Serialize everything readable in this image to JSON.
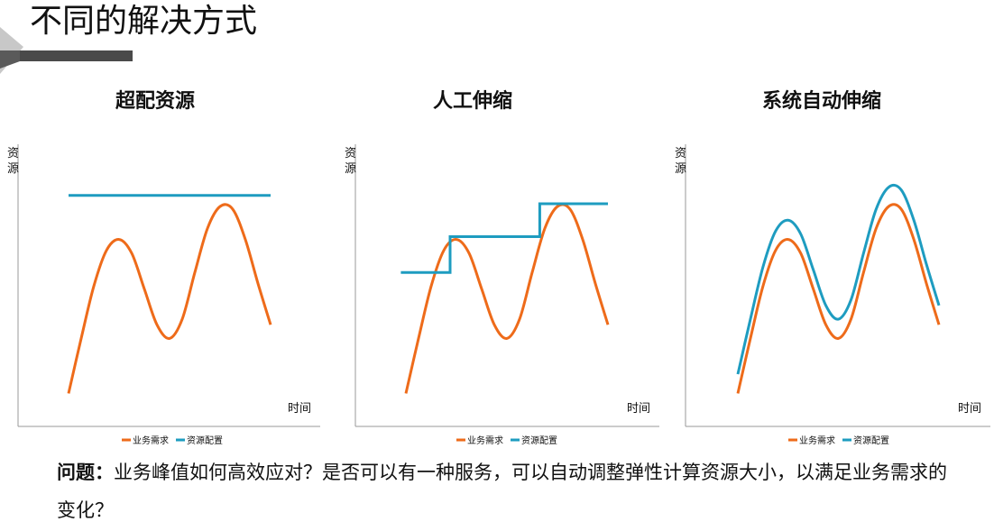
{
  "slide": {
    "title": "不同的解决方式",
    "question_label": "问题：",
    "question_text": "业务峰值如何高效应对？是否可以有一种服务，可以自动调整弹性计算资源大小，以满足业务需求的变化？"
  },
  "colors": {
    "demand": "#EE6B1A",
    "resource": "#1E9CC0",
    "axis": "#9a9a9a",
    "deco_dark": "#4a4a4a",
    "deco_light": "#c8c8c8"
  },
  "chart_data": [
    {
      "type": "line",
      "title": "超配资源",
      "ylabel": "资源",
      "xlabel": "时间",
      "xlim": [
        0,
        10
      ],
      "ylim": [
        0,
        10
      ],
      "series": [
        {
          "name": "业务需求",
          "color": "#EE6B1A",
          "x": [
            0,
            0.5,
            1,
            1.5,
            2,
            2.5,
            3,
            3.5,
            4,
            4.5,
            5,
            5.5,
            6,
            6.5,
            7,
            7.5,
            8
          ],
          "y": [
            1.2,
            3.2,
            5.1,
            6.4,
            6.8,
            6.3,
            5.0,
            3.7,
            3.2,
            3.9,
            5.6,
            7.2,
            8.0,
            7.9,
            6.8,
            5.2,
            3.7
          ]
        },
        {
          "name": "资源配置",
          "color": "#1E9CC0",
          "x": [
            0,
            8
          ],
          "y": [
            8.4,
            8.4
          ]
        }
      ],
      "legend": [
        "业务需求",
        "资源配置"
      ]
    },
    {
      "type": "line",
      "title": "人工伸缩",
      "ylabel": "资源",
      "xlabel": "时间",
      "xlim": [
        0,
        10
      ],
      "ylim": [
        0,
        10
      ],
      "series": [
        {
          "name": "业务需求",
          "color": "#EE6B1A",
          "x": [
            0,
            0.5,
            1,
            1.5,
            2,
            2.5,
            3,
            3.5,
            4,
            4.5,
            5,
            5.5,
            6,
            6.5,
            7,
            7.5,
            8
          ],
          "y": [
            1.2,
            3.2,
            5.1,
            6.4,
            6.8,
            6.3,
            5.0,
            3.7,
            3.2,
            3.9,
            5.6,
            7.2,
            8.0,
            7.9,
            6.8,
            5.2,
            3.7
          ]
        },
        {
          "name": "资源配置",
          "color": "#1E9CC0",
          "step": true,
          "x": [
            -0.2,
            1.75,
            1.75,
            5.3,
            5.3,
            8.0
          ],
          "y": [
            5.6,
            5.6,
            6.9,
            6.9,
            8.1,
            8.1
          ]
        }
      ],
      "legend": [
        "业务需求",
        "资源配置"
      ]
    },
    {
      "type": "line",
      "title": "系统自动伸缩",
      "ylabel": "资源",
      "xlabel": "时间",
      "xlim": [
        0,
        10
      ],
      "ylim": [
        0,
        10
      ],
      "series": [
        {
          "name": "业务需求",
          "color": "#EE6B1A",
          "x": [
            0,
            0.5,
            1,
            1.5,
            2,
            2.5,
            3,
            3.5,
            4,
            4.5,
            5,
            5.5,
            6,
            6.5,
            7,
            7.5,
            8
          ],
          "y": [
            1.2,
            3.2,
            5.1,
            6.4,
            6.8,
            6.3,
            5.0,
            3.7,
            3.2,
            3.9,
            5.6,
            7.2,
            8.0,
            7.9,
            6.8,
            5.2,
            3.7
          ]
        },
        {
          "name": "资源配置",
          "color": "#1E9CC0",
          "x": [
            0,
            0.5,
            1,
            1.5,
            2,
            2.5,
            3,
            3.5,
            4,
            4.5,
            5,
            5.5,
            6,
            6.5,
            7,
            7.5,
            8
          ],
          "y": [
            1.9,
            3.9,
            5.8,
            7.1,
            7.5,
            7.0,
            5.7,
            4.4,
            3.9,
            4.6,
            6.3,
            7.9,
            8.7,
            8.6,
            7.5,
            5.9,
            4.4
          ]
        }
      ],
      "legend": [
        "业务需求",
        "资源配置"
      ]
    }
  ]
}
